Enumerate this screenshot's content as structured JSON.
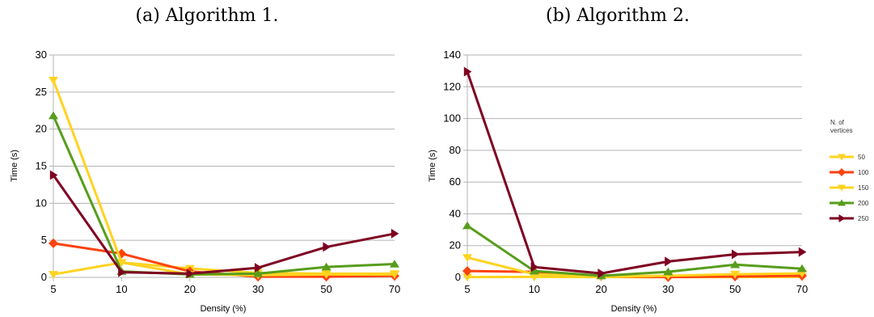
{
  "colors": {
    "c50": "#ffd320",
    "c100": "#ff420e",
    "c150": "#ffd320",
    "c200": "#579d1c",
    "c250": "#7e0021",
    "grid": "#b3b3b3",
    "axis": "#b3b3b3"
  },
  "legend": {
    "title_line1": "N. of",
    "title_line2": "vertices"
  },
  "chart_data": [
    {
      "type": "line",
      "caption": "(a) Algorithm 1.",
      "xlabel": "Density (%)",
      "ylabel": "Time (s)",
      "categories": [
        "5",
        "10",
        "20",
        "30",
        "50",
        "70"
      ],
      "ylim": [
        0,
        30
      ],
      "yticks": [
        0,
        5,
        10,
        15,
        20,
        25,
        30
      ],
      "grid": true,
      "series": [
        {
          "name": "50",
          "marker": "triangle-down",
          "color_key": "c50",
          "values": [
            0.4,
            2.0,
            1.2,
            0.6,
            0.5,
            0.5
          ]
        },
        {
          "name": "100",
          "marker": "diamond",
          "color_key": "c100",
          "values": [
            4.6,
            3.2,
            0.8,
            0.1,
            0.1,
            0.2
          ]
        },
        {
          "name": "150",
          "marker": "triangle-down",
          "color_key": "c150",
          "values": [
            26.6,
            2.0,
            0.4,
            0.3,
            0.4,
            0.4
          ]
        },
        {
          "name": "200",
          "marker": "triangle-up",
          "color_key": "c200",
          "values": [
            21.8,
            0.8,
            0.4,
            0.5,
            1.4,
            1.8
          ]
        },
        {
          "name": "250",
          "marker": "triangle-right",
          "color_key": "c250",
          "values": [
            13.8,
            0.7,
            0.5,
            1.3,
            4.1,
            5.9
          ]
        }
      ]
    },
    {
      "type": "line",
      "caption": "(b) Algorithm 2.",
      "xlabel": "Density (%)",
      "ylabel": "Time (s)",
      "categories": [
        "5",
        "10",
        "20",
        "30",
        "50",
        "70"
      ],
      "ylim": [
        0,
        140
      ],
      "yticks": [
        0,
        20,
        40,
        60,
        80,
        100,
        120,
        140
      ],
      "grid": true,
      "series": [
        {
          "name": "50",
          "marker": "triangle-down",
          "color_key": "c50",
          "values": [
            0.2,
            0.3,
            0.2,
            0.2,
            0.2,
            0.3
          ]
        },
        {
          "name": "100",
          "marker": "diamond",
          "color_key": "c100",
          "values": [
            4.0,
            3.5,
            0.8,
            0.2,
            0.6,
            1.0
          ]
        },
        {
          "name": "150",
          "marker": "triangle-down",
          "color_key": "c150",
          "values": [
            12.5,
            2.0,
            0.5,
            1.0,
            2.0,
            2.5
          ]
        },
        {
          "name": "200",
          "marker": "triangle-up",
          "color_key": "c200",
          "values": [
            32.5,
            4.0,
            1.0,
            3.5,
            8.0,
            5.5
          ]
        },
        {
          "name": "250",
          "marker": "triangle-right",
          "color_key": "c250",
          "values": [
            129.5,
            6.5,
            2.5,
            10.0,
            14.5,
            16.0
          ]
        }
      ]
    }
  ]
}
